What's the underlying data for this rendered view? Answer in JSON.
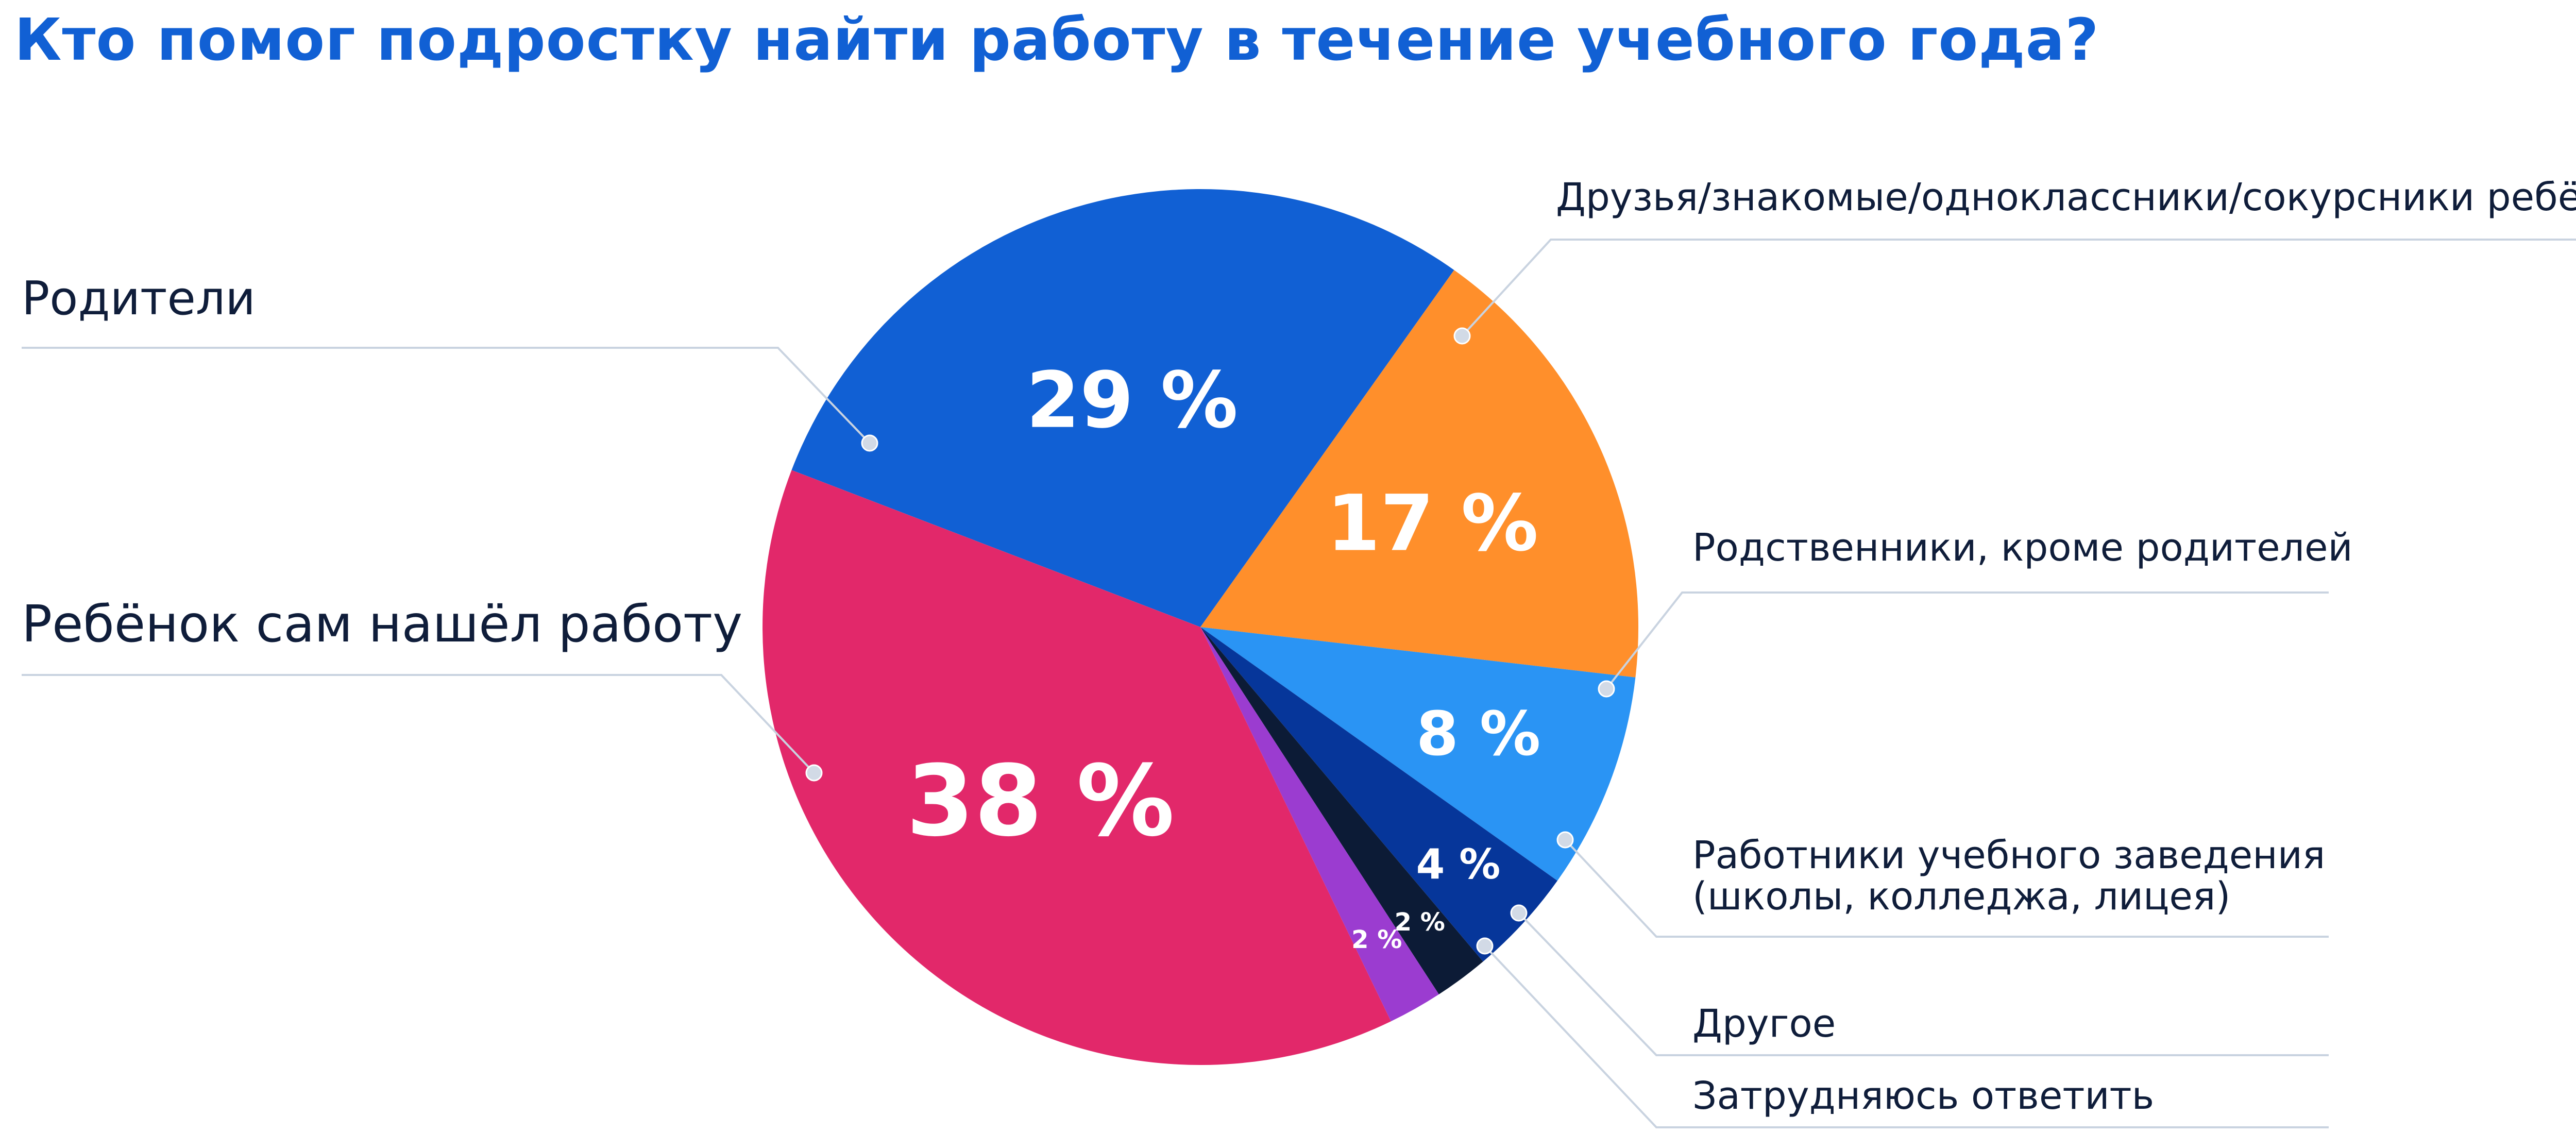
{
  "title": "Кто помог подростку найти работу в течение учебного года?",
  "chart_data": {
    "type": "pie",
    "title": "Кто помог подростку найти работу в течение учебного года?",
    "unit": "%",
    "slices": [
      {
        "label": "Родители",
        "value": 29,
        "display": "29 %",
        "color": "#1160D4"
      },
      {
        "label": "Друзья/знакомые/одноклассники/сокурсники ребёнка",
        "value": 17,
        "display": "17 %",
        "color": "#FF8F2B"
      },
      {
        "label": "Родственники, кроме родителей",
        "value": 8,
        "display": "8 %",
        "color": "#2A94F4"
      },
      {
        "label": "Работники учебного заведения (школы, колледжа, лицея)",
        "value": 4,
        "display": "4 %",
        "color": "#06369A"
      },
      {
        "label": "Другое",
        "value": 2,
        "display": "2 %",
        "color": "#0C1B36"
      },
      {
        "label": "Затрудняюсь ответить",
        "value": 2,
        "display": "2 %",
        "color": "#9B3CD0"
      },
      {
        "label": "Ребёнок сам нашёл работу",
        "value": 38,
        "display": "38 %",
        "color": "#E2286A"
      }
    ]
  }
}
